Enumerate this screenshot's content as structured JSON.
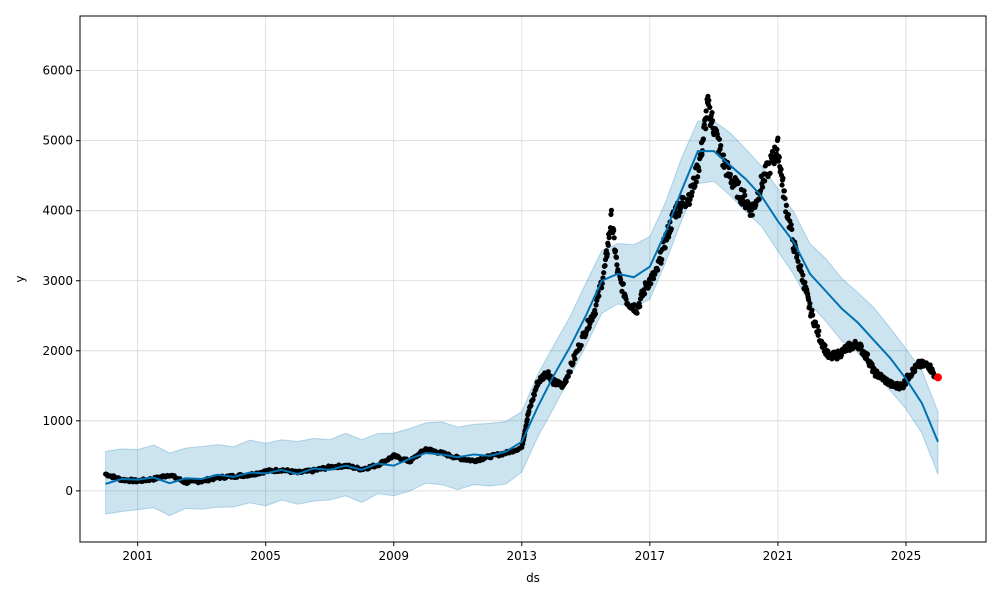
{
  "chart_data": {
    "type": "line",
    "title": "",
    "xlabel": "ds",
    "ylabel": "y",
    "xlim": [
      1999.2,
      2027.5
    ],
    "ylim": [
      -730,
      6780
    ],
    "grid": true,
    "legend": "none",
    "x_ticks": [
      {
        "value": 2001,
        "label": "2001"
      },
      {
        "value": 2005,
        "label": "2005"
      },
      {
        "value": 2009,
        "label": "2009"
      },
      {
        "value": 2013,
        "label": "2013"
      },
      {
        "value": 2017,
        "label": "2017"
      },
      {
        "value": 2021,
        "label": "2021"
      },
      {
        "value": 2025,
        "label": "2025"
      }
    ],
    "y_ticks": [
      {
        "value": 0,
        "label": "0"
      },
      {
        "value": 1000,
        "label": "1000"
      },
      {
        "value": 2000,
        "label": "2000"
      },
      {
        "value": 3000,
        "label": "3000"
      },
      {
        "value": 4000,
        "label": "4000"
      },
      {
        "value": 5000,
        "label": "5000"
      },
      {
        "value": 6000,
        "label": "6000"
      }
    ],
    "colors": {
      "observed": "#000000",
      "forecast": "#0072B2",
      "interval": "#0072B2",
      "highlight": "#ff0000",
      "grid": "#d8d8d8"
    },
    "observed": {
      "x": [
        2000.0,
        2000.5,
        2001.0,
        2001.5,
        2002.0,
        2002.5,
        2003.0,
        2003.5,
        2004.0,
        2004.5,
        2005.0,
        2005.5,
        2006.0,
        2006.5,
        2007.0,
        2007.5,
        2008.0,
        2008.5,
        2009.0,
        2009.5,
        2010.0,
        2010.5,
        2011.0,
        2011.5,
        2012.0,
        2012.5,
        2013.0,
        2013.2,
        2013.5,
        2013.8,
        2014.0,
        2014.3,
        2014.6,
        2015.0,
        2015.3,
        2015.6,
        2015.8,
        2016.0,
        2016.3,
        2016.6,
        2016.9,
        2017.2,
        2017.5,
        2017.8,
        2018.0,
        2018.3,
        2018.6,
        2018.8,
        2019.0,
        2019.3,
        2019.6,
        2019.9,
        2020.2,
        2020.5,
        2020.8,
        2021.0,
        2021.2,
        2021.5,
        2021.8,
        2022.0,
        2022.3,
        2022.6,
        2022.9,
        2023.2,
        2023.5,
        2023.8,
        2024.0,
        2024.3,
        2024.6,
        2024.9,
        2025.1,
        2025.4,
        2025.7,
        2025.9
      ],
      "y": [
        240,
        160,
        140,
        170,
        230,
        120,
        140,
        190,
        210,
        230,
        280,
        300,
        260,
        290,
        340,
        360,
        310,
        370,
        500,
        420,
        600,
        540,
        470,
        430,
        490,
        540,
        620,
        1100,
        1550,
        1700,
        1550,
        1500,
        1850,
        2300,
        2600,
        3200,
        3900,
        3100,
        2700,
        2600,
        2950,
        3100,
        3600,
        4000,
        4100,
        4250,
        4800,
        5500,
        5200,
        4700,
        4400,
        4200,
        4000,
        4400,
        4700,
        4900,
        4200,
        3500,
        3000,
        2600,
        2200,
        1900,
        1950,
        2050,
        2100,
        1900,
        1700,
        1600,
        1500,
        1500,
        1650,
        1800,
        1800,
        1650
      ]
    },
    "forecast": {
      "x": [
        2000.0,
        2000.5,
        2001.0,
        2001.5,
        2002.0,
        2002.5,
        2003.0,
        2003.5,
        2004.0,
        2004.5,
        2005.0,
        2005.5,
        2006.0,
        2006.5,
        2007.0,
        2007.5,
        2008.0,
        2008.5,
        2009.0,
        2009.5,
        2010.0,
        2010.5,
        2011.0,
        2011.5,
        2012.0,
        2012.5,
        2013.0,
        2013.5,
        2014.0,
        2014.5,
        2015.0,
        2015.5,
        2016.0,
        2016.5,
        2017.0,
        2017.5,
        2018.0,
        2018.5,
        2019.0,
        2019.5,
        2020.0,
        2020.5,
        2021.0,
        2021.5,
        2022.0,
        2022.5,
        2023.0,
        2023.5,
        2024.0,
        2024.5,
        2025.0,
        2025.5,
        2026.0
      ],
      "y": [
        100,
        170,
        160,
        190,
        110,
        180,
        170,
        230,
        200,
        260,
        250,
        300,
        240,
        320,
        300,
        360,
        300,
        390,
        360,
        460,
        540,
        520,
        480,
        520,
        500,
        560,
        700,
        1200,
        1650,
        2050,
        2500,
        3000,
        3100,
        3050,
        3200,
        3700,
        4300,
        4850,
        4850,
        4650,
        4450,
        4200,
        3850,
        3550,
        3100,
        2850,
        2600,
        2400,
        2150,
        1900,
        1600,
        1250,
        700
      ]
    },
    "interval_half_width": 430,
    "highlight": {
      "x": 2026.0,
      "y": 1620
    }
  }
}
